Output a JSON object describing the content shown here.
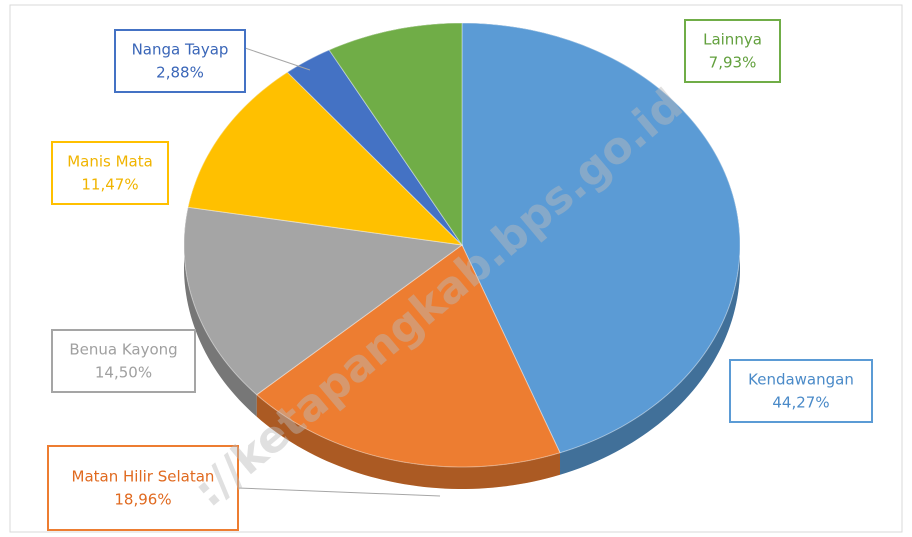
{
  "chart_data": {
    "type": "pie",
    "watermark": "://ketapangkab.bps.go.id",
    "categories": [
      "Kendawangan",
      "Matan Hilir Selatan",
      "Benua Kayong",
      "Manis Mata",
      "Nanga Tayap",
      "Lainnya"
    ],
    "values": [
      44.27,
      18.96,
      14.5,
      11.47,
      2.88,
      7.93
    ],
    "value_labels": [
      "44,27%",
      "18,96%",
      "14,50%",
      "11,47%",
      "2,88%",
      "7,93%"
    ],
    "colors": [
      "#5b9bd5",
      "#ed7d31",
      "#a5a5a5",
      "#ffc000",
      "#4472c4",
      "#70ad47"
    ]
  }
}
